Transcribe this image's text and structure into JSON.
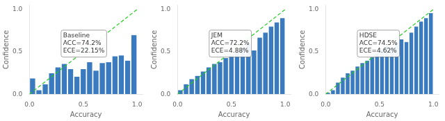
{
  "chart_data": [
    {
      "type": "histogram",
      "bins": [
        0,
        0.058824,
        0.117647,
        0.176471,
        0.235294,
        0.294118,
        0.352941,
        0.411765,
        0.470588,
        0.529412,
        0.588235,
        0.647059,
        0.705882,
        0.764706,
        0.823529,
        0.882353,
        0.941176,
        1
      ],
      "series": [
        {
          "type": "bar",
          "color": "#3a7abf",
          "values": [
            0.19,
            0.05,
            0.12,
            0.25,
            0.32,
            0.36,
            0.3,
            0.21,
            0.3,
            0.38,
            0.28,
            0.37,
            0.38,
            0.45,
            0.46,
            0.4,
            0.7
          ]
        },
        {
          "type": "line",
          "x": [
            0,
            1
          ],
          "values": [
            0,
            1
          ],
          "color": "#22cc22",
          "line_style": "dashed"
        }
      ],
      "annotations": [
        "Baseline\nACC=74.2%\nECE=22.15%"
      ],
      "xlabel": "Accuracy",
      "ylabel": "Confidence",
      "xlim": [
        0.0,
        1.05
      ],
      "ylim": [
        0.0,
        1.05
      ],
      "xticks": [
        {
          "value": 0,
          "label": "0.0"
        },
        0.5,
        {
          "value": 1,
          "label": "1.0"
        }
      ],
      "yticks": [
        {
          "value": 0,
          "label": "0.0"
        },
        0.5,
        {
          "value": 1,
          "label": "1.0"
        }
      ],
      "grid": false
    },
    {
      "type": "histogram",
      "bins": [
        0,
        0.052632,
        0.105263,
        0.157895,
        0.210526,
        0.263158,
        0.315789,
        0.368421,
        0.421053,
        0.473684,
        0.526316,
        0.578947,
        0.631579,
        0.684211,
        0.736842,
        0.789474,
        0.842105,
        0.894737,
        0.947368,
        1
      ],
      "series": [
        {
          "type": "bar",
          "color": "#3a7abf",
          "values": [
            0.05,
            0.12,
            0.18,
            0.22,
            0.27,
            0.32,
            0.36,
            0.38,
            0.43,
            0.47,
            0.5,
            0.55,
            0.6,
            0.52,
            0.67,
            0.73,
            0.8,
            0.85,
            0.9
          ]
        },
        {
          "type": "line",
          "x": [
            0,
            1
          ],
          "values": [
            0,
            1
          ],
          "color": "#22cc22",
          "line_style": "dashed"
        }
      ],
      "annotations": [
        "JEM\nACC=72.2%\nECE=4.88%"
      ],
      "xlabel": "Accuracy",
      "ylabel": "Confidence",
      "xlim": [
        0.0,
        1.05
      ],
      "ylim": [
        0.0,
        1.05
      ],
      "xticks": [
        {
          "value": 0,
          "label": "0.0"
        },
        0.5,
        {
          "value": 1,
          "label": "1.0"
        }
      ],
      "yticks": [
        {
          "value": 0,
          "label": "0.0"
        },
        0.5,
        {
          "value": 1,
          "label": "1.0"
        }
      ],
      "grid": false
    },
    {
      "type": "histogram",
      "bins": [
        0,
        0.045455,
        0.090909,
        0.136364,
        0.181818,
        0.227273,
        0.272727,
        0.318182,
        0.363636,
        0.409091,
        0.454545,
        0.5,
        0.545455,
        0.590909,
        0.636364,
        0.681818,
        0.727273,
        0.772727,
        0.818182,
        0.863636,
        0.909091,
        0.954545,
        1
      ],
      "series": [
        {
          "type": "bar",
          "color": "#3a7abf",
          "values": [
            0.02,
            0.05,
            0.14,
            0.2,
            0.25,
            0.28,
            0.33,
            0.37,
            0.4,
            0.44,
            0.48,
            0.53,
            0.57,
            0.55,
            0.62,
            0.65,
            0.62,
            0.73,
            0.8,
            0.86,
            0.9,
            0.96
          ]
        },
        {
          "type": "line",
          "x": [
            0,
            1
          ],
          "values": [
            0,
            1
          ],
          "color": "#22cc22",
          "line_style": "dashed"
        }
      ],
      "annotations": [
        "HDSE\nACC=74.5%\nECE=4.62%"
      ],
      "xlabel": "Accuracy",
      "ylabel": "Confidence",
      "xlim": [
        0.0,
        1.05
      ],
      "ylim": [
        0.0,
        1.05
      ],
      "xticks": [
        {
          "value": 0,
          "label": "0.0"
        },
        0.5,
        {
          "value": 1,
          "label": "1.0"
        }
      ],
      "yticks": [
        {
          "value": 0,
          "label": "0.0"
        },
        0.5,
        {
          "value": 1,
          "label": "1.0"
        }
      ],
      "grid": false
    }
  ]
}
